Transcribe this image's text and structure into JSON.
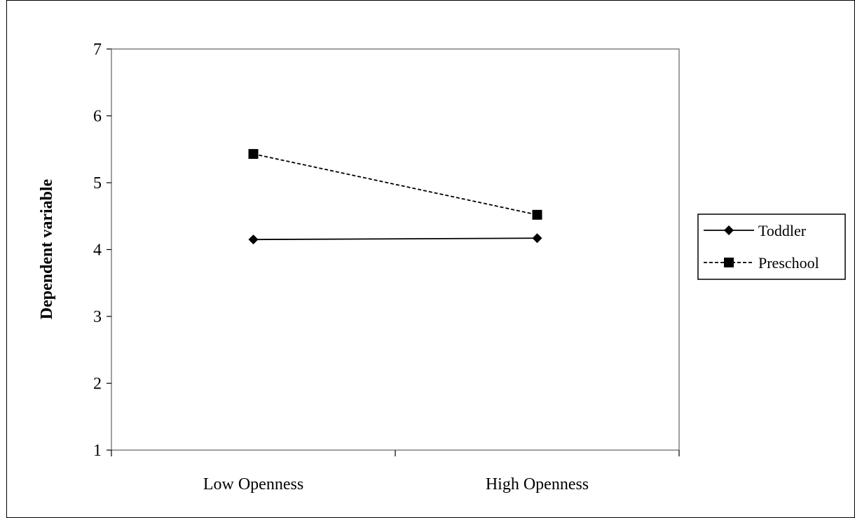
{
  "chart_data": {
    "type": "line",
    "title": "",
    "xlabel": "",
    "ylabel": "Dependent variable",
    "categories": [
      "Low Openness",
      "High Openness"
    ],
    "ylim": [
      1,
      7
    ],
    "yticks": [
      1,
      2,
      3,
      4,
      5,
      6,
      7
    ],
    "grid": false,
    "legend_position": "right",
    "series": [
      {
        "name": "Toddler",
        "values": [
          4.15,
          4.17
        ],
        "marker": "diamond",
        "line_style": "solid",
        "color": "#000000"
      },
      {
        "name": "Preschool",
        "values": [
          5.43,
          4.52
        ],
        "marker": "square",
        "line_style": "dashed",
        "color": "#000000"
      }
    ]
  }
}
